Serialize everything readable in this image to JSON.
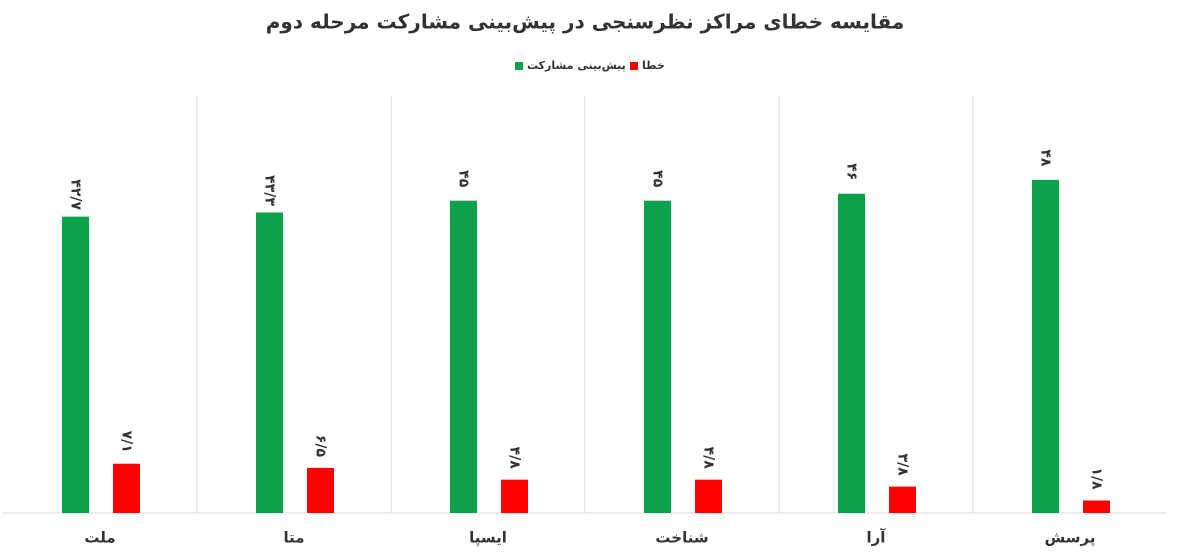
{
  "chart_data": {
    "type": "bar",
    "title": "مقایسه خطای مراکز نظرسنجی در پیش‌بینی مشارکت مرحله دوم",
    "categories": [
      "ملت",
      "متا",
      "ایسپا",
      "شناخت",
      "آرا",
      "پرسش"
    ],
    "series": [
      {
        "name": "پیش‌بینی مشارکت",
        "color": "#0ca14b",
        "values": [
          42.7,
          43.3,
          45,
          45,
          46,
          48
        ],
        "value_labels": [
          "۴۲/۷",
          "۴۳/۳",
          "۴۵",
          "۴۵",
          "۴۶",
          "۴۸"
        ]
      },
      {
        "name": "خطا",
        "color": "#ff0000",
        "values": [
          7.1,
          6.5,
          4.8,
          4.8,
          3.8,
          1.8
        ],
        "value_labels": [
          "۷/۱",
          "۶/۵",
          "۴/۸",
          "۴/۸",
          "۳/۸",
          "۱/۸"
        ]
      }
    ]
  }
}
